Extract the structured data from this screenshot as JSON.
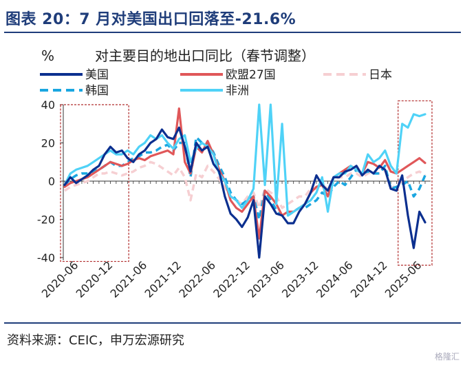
{
  "header": {
    "title": "图表 20：7 月对美国出口回落至-21.6%"
  },
  "footer": {
    "source": "资料来源：CEIC，申万宏源研究",
    "watermark": "格隆汇"
  },
  "chart_data": {
    "type": "line",
    "title": "对主要目的地出口同比（春节调整）",
    "ylabel": "%",
    "xlabel": "",
    "ylim": [
      -40,
      40
    ],
    "yticks": [
      -40,
      -20,
      0,
      20,
      40
    ],
    "x": [
      "2020-04",
      "2020-05",
      "2020-06",
      "2020-07",
      "2020-08",
      "2020-09",
      "2020-10",
      "2020-11",
      "2020-12",
      "2021-01",
      "2021-02",
      "2021-03",
      "2021-04",
      "2021-05",
      "2021-06",
      "2021-07",
      "2021-08",
      "2021-09",
      "2021-10",
      "2021-11",
      "2021-12",
      "2022-01",
      "2022-02",
      "2022-03",
      "2022-04",
      "2022-05",
      "2022-06",
      "2022-07",
      "2022-08",
      "2022-09",
      "2022-10",
      "2022-11",
      "2022-12",
      "2023-01",
      "2023-02",
      "2023-03",
      "2023-04",
      "2023-05",
      "2023-06",
      "2023-07",
      "2023-08",
      "2023-09",
      "2023-10",
      "2023-11",
      "2023-12",
      "2024-01",
      "2024-02",
      "2024-03",
      "2024-04",
      "2024-05",
      "2024-06",
      "2024-07",
      "2024-08",
      "2024-09",
      "2024-10",
      "2024-11",
      "2024-12",
      "2025-01",
      "2025-02",
      "2025-03",
      "2025-04",
      "2025-05",
      "2025-06",
      "2025-07"
    ],
    "xtick_labels": [
      "2020-06",
      "2020-12",
      "2021-06",
      "2021-12",
      "2022-06",
      "2022-12",
      "2023-06",
      "2023-12",
      "2024-06",
      "2024-12",
      "2025-06"
    ],
    "legend_position": "top",
    "series": [
      {
        "name": "美国",
        "color": "#0b2f8f",
        "style": "solid",
        "values": [
          -2,
          2,
          -1,
          1,
          3,
          6,
          8,
          14,
          18,
          15,
          16,
          12,
          10,
          14,
          16,
          20,
          22,
          27,
          23,
          22,
          28,
          18,
          5,
          20,
          16,
          18,
          9,
          5,
          -8,
          -17,
          -20,
          -24,
          -19,
          -10,
          -40,
          -8,
          -12,
          -17,
          -18,
          -22,
          -22,
          -16,
          -12,
          -6,
          3,
          -2,
          -5,
          2,
          2,
          5,
          6,
          8,
          3,
          6,
          4,
          8,
          6,
          -4,
          -5,
          3,
          -18,
          -35,
          -16,
          -21.6
        ]
      },
      {
        "name": "欧盟27国",
        "color": "#e05759",
        "style": "solid",
        "values": [
          -3,
          -1,
          0,
          1,
          2,
          4,
          6,
          8,
          10,
          9,
          8,
          9,
          11,
          12,
          11,
          13,
          14,
          15,
          16,
          14,
          38,
          10,
          4,
          18,
          15,
          21,
          14,
          6,
          0,
          -10,
          -14,
          -16,
          -12,
          -8,
          -30,
          -5,
          -8,
          -12,
          -18,
          -16,
          -16,
          -14,
          -12,
          -6,
          -3,
          -2,
          -8,
          2,
          4,
          6,
          8,
          6,
          4,
          10,
          9,
          7,
          11,
          5,
          4,
          6,
          8,
          10,
          12,
          9.5
        ]
      },
      {
        "name": "日本",
        "color": "#f6cfd2",
        "style": "dash",
        "values": [
          -5,
          -3,
          -2,
          -1,
          0,
          2,
          4,
          4,
          5,
          4,
          3,
          4,
          5,
          7,
          8,
          10,
          9,
          7,
          5,
          3,
          7,
          2,
          -10,
          4,
          2,
          8,
          5,
          1,
          -3,
          -8,
          -10,
          -12,
          -8,
          -6,
          -14,
          -4,
          -6,
          -8,
          -14,
          -12,
          -10,
          -8,
          -8,
          -4,
          -4,
          -2,
          -4,
          0,
          2,
          2,
          4,
          4,
          2,
          4,
          5,
          4,
          6,
          -4,
          -2,
          0,
          2,
          4,
          5,
          3
        ]
      },
      {
        "name": "韩国",
        "color": "#1aa6e0",
        "style": "dash",
        "values": [
          -2,
          1,
          3,
          4,
          4,
          5,
          6,
          8,
          10,
          8,
          8,
          10,
          12,
          13,
          15,
          15,
          16,
          18,
          19,
          16,
          20,
          20,
          2,
          23,
          20,
          20,
          15,
          8,
          2,
          -6,
          -10,
          -12,
          -10,
          -8,
          -20,
          -5,
          -10,
          -15,
          -18,
          -18,
          -16,
          -14,
          -14,
          -12,
          -10,
          -6,
          -8,
          -3,
          0,
          -2,
          2,
          6,
          4,
          5,
          4,
          4,
          8,
          -4,
          -3,
          -2,
          0,
          -8,
          -4,
          3
        ]
      },
      {
        "name": "非洲",
        "color": "#4fd2f7",
        "style": "solid",
        "values": [
          -2,
          4,
          6,
          7,
          8,
          10,
          12,
          14,
          16,
          14,
          14,
          16,
          14,
          18,
          20,
          24,
          22,
          24,
          20,
          17,
          22,
          24,
          10,
          17,
          20,
          18,
          14,
          4,
          0,
          -8,
          -10,
          -14,
          -10,
          -4,
          40,
          -2,
          40,
          -12,
          30,
          -18,
          -16,
          -14,
          -12,
          -10,
          -6,
          2,
          -16,
          2,
          4,
          4,
          8,
          6,
          4,
          14,
          10,
          12,
          16,
          8,
          4,
          30,
          28,
          35,
          34,
          35
        ]
      }
    ],
    "annotations": [
      {
        "type": "dashed-box",
        "color": "#b02a2a",
        "x_from": "2020-04",
        "x_to": "2021-02",
        "y_from": -42,
        "y_to": 40
      },
      {
        "type": "dashed-box",
        "color": "#b02a2a",
        "x_from": "2025-03",
        "x_to": "2025-07",
        "y_from": -44,
        "y_to": 42
      }
    ]
  }
}
